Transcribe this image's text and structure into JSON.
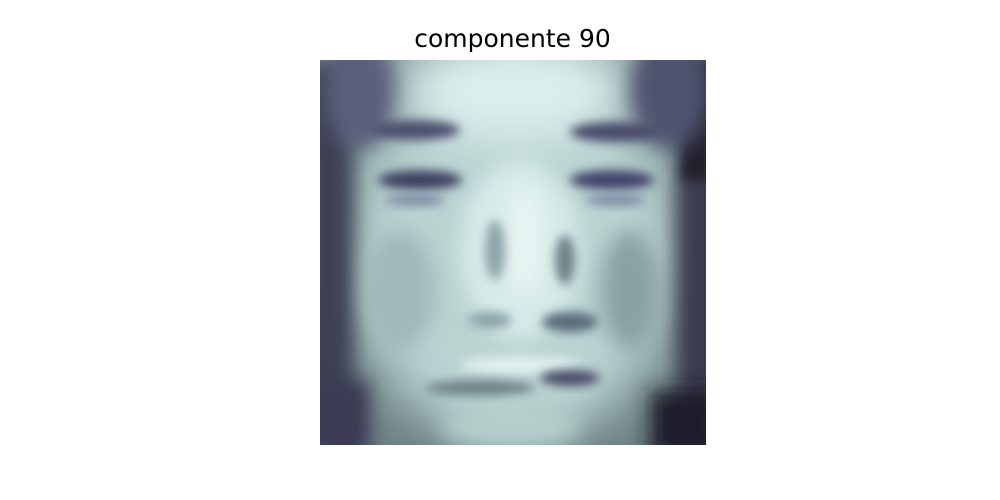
{
  "title": "componente 90",
  "image": {
    "colormap": "bone",
    "colors": {
      "dark": "#20202e",
      "mid_dark": "#56597a",
      "mid": "#7f9391",
      "light": "#b7d1cf",
      "highlight": "#e8f4f2"
    }
  }
}
